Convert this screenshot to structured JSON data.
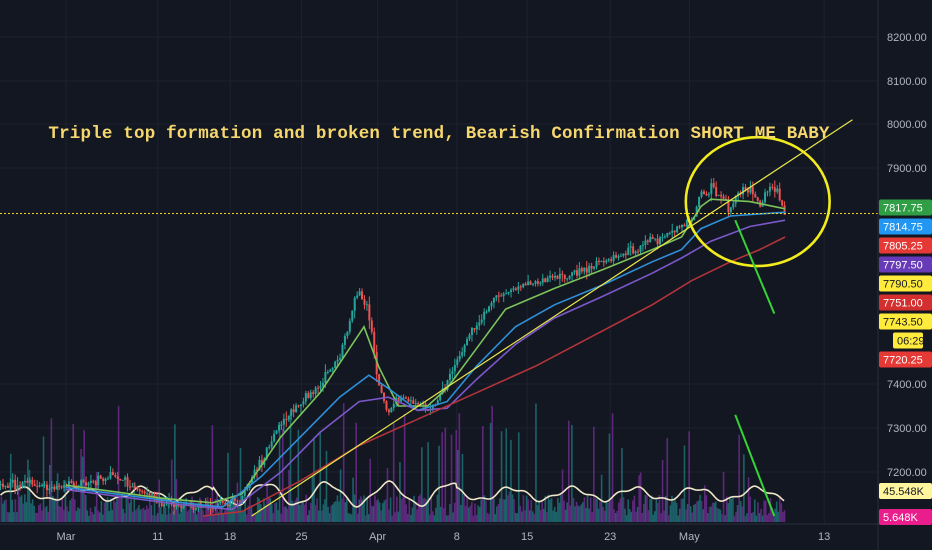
{
  "annotation": {
    "text": "Triple top formation and broken trend, Bearish Confirmation SHORT ME BABY",
    "color": "#f5d76e"
  },
  "colors": {
    "background": "#131722",
    "grid": "#1e2230",
    "axis_text": "#b2b5be",
    "candle_up": "#26a69a",
    "candle_down": "#ef5350",
    "ema_fast": "#7cc35a",
    "ema_mid": "#2f8fd8",
    "ema_slow": "#7b58c9",
    "sma_long": "#b3343a",
    "trendline": "#e9e64a",
    "circle": "#f2ec1d",
    "arrow": "#35d435",
    "oscillator": "#efe6c8",
    "volume_purple": "#6a2c8a",
    "volume_teal": "#1f6f74",
    "price_line": "#f2d21c"
  },
  "chart_data": {
    "type": "candlestick",
    "title": "",
    "xlabel": "",
    "ylabel": "",
    "ylim": [
      7100,
      8260
    ],
    "grid": true,
    "y_ticks": [
      "8200.00",
      "8100.00",
      "8000.00",
      "7900.00",
      "7400.00",
      "7300.00",
      "7200.00"
    ],
    "x_ticks": [
      "Mar",
      "11",
      "18",
      "25",
      "Apr",
      "8",
      "15",
      "23",
      "May",
      "13"
    ],
    "price_anchors": [
      {
        "x": 0,
        "y": 7170
      },
      {
        "x": 5,
        "y": 7190
      },
      {
        "x": 10,
        "y": 7130
      },
      {
        "x": 15,
        "y": 7120
      },
      {
        "x": 18,
        "y": 7140
      },
      {
        "x": 22,
        "y": 7310
      },
      {
        "x": 24,
        "y": 7360
      },
      {
        "x": 26,
        "y": 7400
      },
      {
        "x": 28,
        "y": 7460
      },
      {
        "x": 30,
        "y": 7620
      },
      {
        "x": 31,
        "y": 7560
      },
      {
        "x": 32,
        "y": 7400
      },
      {
        "x": 33,
        "y": 7330
      },
      {
        "x": 34,
        "y": 7370
      },
      {
        "x": 36,
        "y": 7360
      },
      {
        "x": 37,
        "y": 7340
      },
      {
        "x": 38,
        "y": 7360
      },
      {
        "x": 40,
        "y": 7450
      },
      {
        "x": 42,
        "y": 7540
      },
      {
        "x": 44,
        "y": 7600
      },
      {
        "x": 47,
        "y": 7630
      },
      {
        "x": 51,
        "y": 7650
      },
      {
        "x": 53,
        "y": 7670
      },
      {
        "x": 56,
        "y": 7700
      },
      {
        "x": 59,
        "y": 7730
      },
      {
        "x": 62,
        "y": 7760
      },
      {
        "x": 64,
        "y": 7790
      },
      {
        "x": 65,
        "y": 7840
      },
      {
        "x": 66,
        "y": 7860
      },
      {
        "x": 67,
        "y": 7840
      },
      {
        "x": 68,
        "y": 7810
      },
      {
        "x": 69,
        "y": 7850
      },
      {
        "x": 70,
        "y": 7860
      },
      {
        "x": 71,
        "y": 7820
      },
      {
        "x": 72,
        "y": 7855
      },
      {
        "x": 73,
        "y": 7845
      },
      {
        "x": 73.6,
        "y": 7805
      }
    ],
    "x_domain": [
      0,
      81
    ],
    "ma_lines": [
      {
        "name": "",
        "color_key": "ema_fast",
        "points": [
          [
            0,
            7170
          ],
          [
            10,
            7140
          ],
          [
            15,
            7130
          ],
          [
            18,
            7150
          ],
          [
            22,
            7280
          ],
          [
            26,
            7380
          ],
          [
            29,
            7480
          ],
          [
            30.5,
            7530
          ],
          [
            32,
            7440
          ],
          [
            34,
            7350
          ],
          [
            37,
            7350
          ],
          [
            39,
            7390
          ],
          [
            42,
            7480
          ],
          [
            45,
            7570
          ],
          [
            50,
            7620
          ],
          [
            55,
            7670
          ],
          [
            60,
            7720
          ],
          [
            63,
            7750
          ],
          [
            65,
            7820
          ],
          [
            66,
            7835
          ],
          [
            70,
            7830
          ],
          [
            73.6,
            7815
          ]
        ]
      },
      {
        "name": "",
        "color_key": "ema_mid",
        "points": [
          [
            0,
            7165
          ],
          [
            12,
            7130
          ],
          [
            16,
            7120
          ],
          [
            20,
            7190
          ],
          [
            24,
            7280
          ],
          [
            28,
            7370
          ],
          [
            31,
            7420
          ],
          [
            33,
            7390
          ],
          [
            36,
            7340
          ],
          [
            39,
            7360
          ],
          [
            42,
            7440
          ],
          [
            46,
            7530
          ],
          [
            50,
            7580
          ],
          [
            55,
            7630
          ],
          [
            60,
            7690
          ],
          [
            63,
            7720
          ],
          [
            65,
            7770
          ],
          [
            68,
            7800
          ],
          [
            73.6,
            7808
          ]
        ]
      },
      {
        "name": "",
        "color_key": "ema_slow",
        "points": [
          [
            0,
            7160
          ],
          [
            12,
            7125
          ],
          [
            17,
            7115
          ],
          [
            22,
            7200
          ],
          [
            26,
            7290
          ],
          [
            30,
            7360
          ],
          [
            33,
            7370
          ],
          [
            36,
            7340
          ],
          [
            39,
            7345
          ],
          [
            42,
            7410
          ],
          [
            46,
            7490
          ],
          [
            50,
            7550
          ],
          [
            55,
            7600
          ],
          [
            60,
            7660
          ],
          [
            63,
            7700
          ],
          [
            66,
            7740
          ],
          [
            70,
            7775
          ],
          [
            73.6,
            7790
          ]
        ]
      },
      {
        "name": "",
        "color_key": "sma_long",
        "points": [
          [
            14,
            7100
          ],
          [
            18,
            7110
          ],
          [
            24,
            7180
          ],
          [
            30,
            7260
          ],
          [
            36,
            7320
          ],
          [
            42,
            7380
          ],
          [
            48,
            7440
          ],
          [
            54,
            7510
          ],
          [
            60,
            7580
          ],
          [
            64,
            7640
          ],
          [
            68,
            7690
          ],
          [
            71,
            7720
          ],
          [
            73.6,
            7750
          ]
        ]
      }
    ],
    "trendline": {
      "points": [
        [
          19,
          7100
        ],
        [
          80.5,
          8010
        ]
      ]
    },
    "circle": {
      "cx": 70.8,
      "cy": 7830,
      "rx": 11.5,
      "ry_price": 160
    },
    "arrows": [
      {
        "points": [
          [
            68.5,
            7790
          ],
          [
            72.5,
            7560
          ]
        ]
      },
      {
        "points": [
          [
            68.5,
            7330
          ],
          [
            72.5,
            7100
          ]
        ]
      }
    ],
    "price_line": 7805.25,
    "right_badges": [
      {
        "label": "7817.75",
        "bg": "#2f9e44",
        "fg": "#ffffff",
        "value": 7817.75
      },
      {
        "label": "7814.75",
        "bg": "#2196f3",
        "fg": "#ffffff",
        "value": 7814.75
      },
      {
        "label": "7805.25",
        "bg": "#e53935",
        "fg": "#ffffff",
        "value": 7805.25
      },
      {
        "label": "7797.50",
        "bg": "#673ab7",
        "fg": "#ffffff",
        "value": 7797.5
      },
      {
        "label": "7790.50",
        "bg": "#ffeb3b",
        "fg": "#131722",
        "value": 7790.5
      },
      {
        "label": "7751.00",
        "bg": "#d32f2f",
        "fg": "#ffffff",
        "value": 7751.0
      },
      {
        "label": "7743.50",
        "bg": "#ffeb3b",
        "fg": "#131722",
        "value": 7743.5
      },
      {
        "label": "06:29",
        "bg": "#ffeb3b",
        "fg": "#131722",
        "value": 7730.0
      },
      {
        "label": "7720.25",
        "bg": "#e53935",
        "fg": "#ffffff",
        "value": 7720.25
      },
      {
        "label": "45.548K",
        "bg": "#fff59d",
        "fg": "#131722",
        "value": 7188.0
      },
      {
        "label": "5.648K",
        "bg": "#e91e8c",
        "fg": "#ffffff",
        "value": 7110.0
      }
    ]
  }
}
